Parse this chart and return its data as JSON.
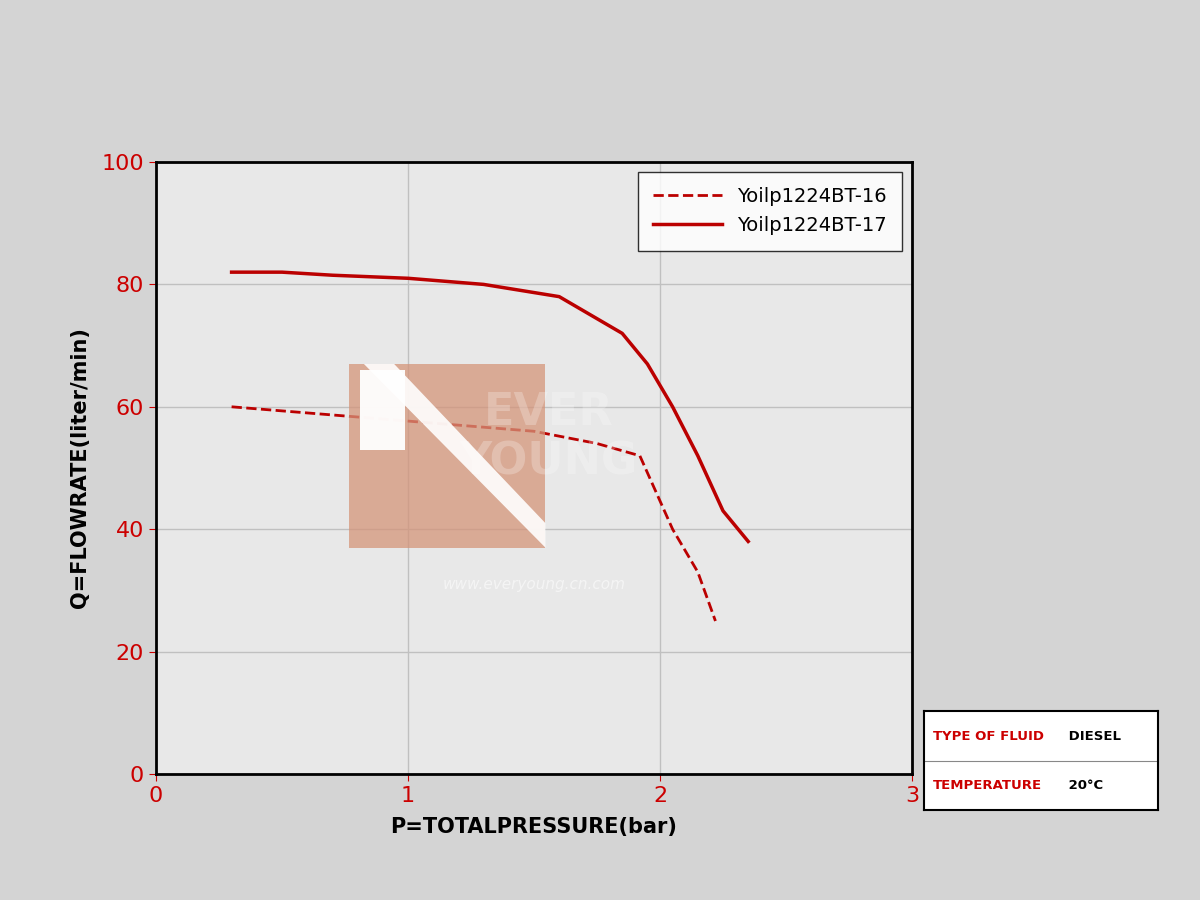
{
  "bg_color": "#d4d4d4",
  "plot_bg_color": "#e8e8e8",
  "xlabel": "P=TOTALPRESSURE(bar)",
  "ylabel": "Q=FLOWRATE(liter/min)",
  "xlim": [
    0,
    3
  ],
  "ylim": [
    0,
    100
  ],
  "xticks": [
    0,
    1,
    2,
    3
  ],
  "yticks": [
    0,
    20,
    40,
    60,
    80,
    100
  ],
  "tick_color": "#cc0000",
  "grid_color": "#c0c0c0",
  "line_color": "#bb0000",
  "series": [
    {
      "label": "Yoilp1224BT-16",
      "style": "dashed",
      "x": [
        0.3,
        0.6,
        0.9,
        1.2,
        1.5,
        1.75,
        1.92,
        2.05,
        2.15,
        2.22
      ],
      "y": [
        60,
        59,
        58,
        57,
        56,
        54,
        52,
        40,
        33,
        25
      ]
    },
    {
      "label": "Yoilp1224BT-17",
      "style": "solid",
      "x": [
        0.3,
        0.5,
        0.7,
        1.0,
        1.3,
        1.6,
        1.85,
        1.95,
        2.05,
        2.15,
        2.25,
        2.35
      ],
      "y": [
        82,
        82,
        81.5,
        81,
        80,
        78,
        72,
        67,
        60,
        52,
        43,
        38
      ]
    }
  ],
  "legend_loc": "upper right",
  "info_box": {
    "line1_red": "TYPE OF FLUID",
    "line1_black": " DIESEL",
    "line2_red": "TEMPERATURE",
    "line2_black": " 20°C"
  },
  "watermark_text": "www.everyoung.cn.com",
  "axis_label_fontsize": 15,
  "tick_fontsize": 16,
  "legend_fontsize": 14,
  "logo_color": "#d4957a",
  "logo_alpha": 0.75
}
